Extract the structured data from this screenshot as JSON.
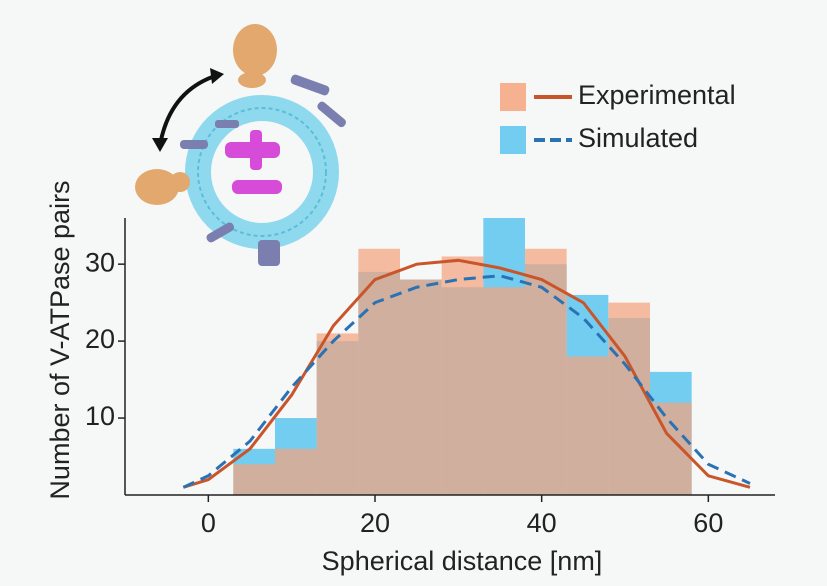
{
  "chart_data": {
    "type": "histogram",
    "xlabel": "Spherical distance [nm]",
    "ylabel": "Number of V-ATPase pairs",
    "bins": [
      3,
      8,
      13,
      18,
      23,
      28,
      33,
      38,
      43,
      48,
      53,
      58
    ],
    "xlim": [
      -10,
      68
    ],
    "ylim": [
      0,
      36
    ],
    "xticks": [
      0,
      20,
      40,
      60
    ],
    "yticks": [
      10,
      20,
      30
    ],
    "fit_x": [
      -3,
      0,
      5,
      10,
      15,
      20,
      25,
      30,
      35,
      40,
      45,
      50,
      55,
      60,
      65
    ],
    "legend": "upper right",
    "series": [
      {
        "name": "Experimental",
        "color": "#f4a47e",
        "values": [
          4,
          6,
          21,
          32,
          28,
          31,
          27,
          32,
          18,
          25,
          12
        ],
        "fit_color": "#c9552b",
        "fit_dash": false,
        "fit_values": [
          1,
          2,
          6,
          13,
          22,
          28,
          30,
          30.5,
          29.5,
          28,
          25,
          18,
          8,
          2.5,
          1
        ]
      },
      {
        "name": "Simulated",
        "color": "#5cc6ee",
        "values": [
          6,
          10,
          20,
          29,
          28,
          27,
          36,
          30,
          26,
          23,
          16
        ],
        "fit_color": "#2a72b4",
        "fit_dash": true,
        "fit_values": [
          1,
          2.5,
          7,
          14,
          20,
          25,
          27,
          28,
          28.5,
          27,
          23,
          17,
          10,
          4,
          1.5
        ]
      }
    ]
  }
}
